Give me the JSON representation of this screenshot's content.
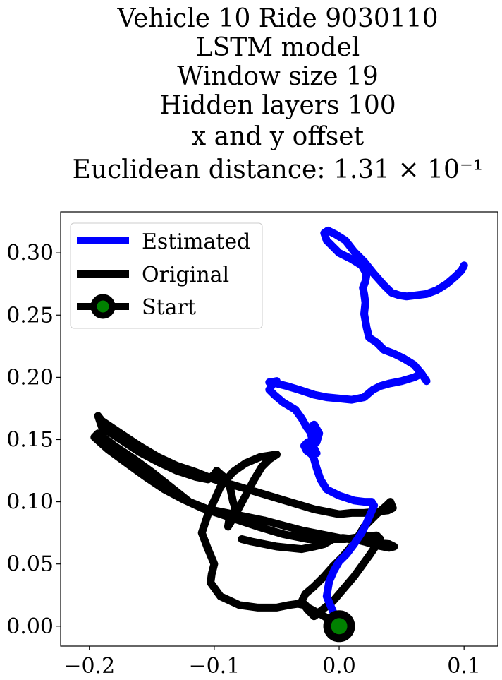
{
  "chart_data": {
    "type": "line",
    "title_lines": [
      "Vehicle 10 Ride 9030110",
      "LSTM model",
      "Window size 19",
      "Hidden layers 100",
      "x and y offset",
      "Euclidean distance: 1.31 × 10⁻¹"
    ],
    "xlabel": "",
    "ylabel": "",
    "xlim": [
      -0.223,
      0.127
    ],
    "ylim": [
      -0.016,
      0.333
    ],
    "x_ticks": [
      -0.2,
      -0.1,
      0.0,
      0.1
    ],
    "x_tick_labels": [
      "−0.2",
      "−0.1",
      "0.0",
      "0.1"
    ],
    "y_ticks": [
      0.0,
      0.05,
      0.1,
      0.15,
      0.2,
      0.25,
      0.3
    ],
    "y_tick_labels": [
      "0.00",
      "0.05",
      "0.10",
      "0.15",
      "0.20",
      "0.25",
      "0.30"
    ],
    "grid": false,
    "legend_position": "top-left",
    "series": [
      {
        "name": "Estimated",
        "color": "#0000ff",
        "x": [
          0.0,
          -0.005,
          -0.01,
          -0.008,
          -0.004,
          0.0,
          0.006,
          0.012,
          0.018,
          0.022,
          0.025,
          0.028,
          0.026,
          0.02,
          0.012,
          0.0,
          -0.01,
          -0.015,
          -0.018,
          -0.02,
          -0.022,
          -0.026,
          -0.028,
          -0.025,
          -0.02,
          -0.018,
          -0.021,
          -0.022,
          -0.024,
          -0.02,
          -0.016,
          -0.018,
          -0.02,
          -0.026,
          -0.03,
          -0.035,
          -0.045,
          -0.052,
          -0.056,
          -0.053,
          -0.05,
          -0.055,
          -0.056,
          -0.05,
          -0.042,
          -0.032,
          -0.02,
          -0.01,
          0.0,
          0.01,
          0.02,
          0.027,
          0.033,
          0.04,
          0.05,
          0.06,
          0.066,
          0.07,
          0.066,
          0.06,
          0.052,
          0.044,
          0.036,
          0.03,
          0.024,
          0.022,
          0.02,
          0.021,
          0.02,
          0.019,
          0.021,
          0.022,
          0.018,
          0.01,
          0.0,
          -0.006,
          -0.01,
          -0.012,
          -0.009,
          -0.003,
          0.005,
          0.012,
          0.02,
          0.028,
          0.036,
          0.042,
          0.048,
          0.054,
          0.062,
          0.07,
          0.078,
          0.086,
          0.093,
          0.098,
          0.1
        ],
        "y": [
          0.0,
          0.012,
          0.024,
          0.036,
          0.045,
          0.052,
          0.058,
          0.066,
          0.075,
          0.083,
          0.09,
          0.097,
          0.1,
          0.1,
          0.101,
          0.105,
          0.11,
          0.118,
          0.127,
          0.134,
          0.138,
          0.141,
          0.145,
          0.148,
          0.143,
          0.139,
          0.144,
          0.152,
          0.159,
          0.162,
          0.155,
          0.148,
          0.152,
          0.16,
          0.167,
          0.174,
          0.18,
          0.186,
          0.19,
          0.195,
          0.197,
          0.196,
          0.196,
          0.195,
          0.193,
          0.19,
          0.186,
          0.184,
          0.183,
          0.182,
          0.184,
          0.19,
          0.193,
          0.195,
          0.197,
          0.2,
          0.203,
          0.197,
          0.203,
          0.21,
          0.215,
          0.219,
          0.222,
          0.228,
          0.232,
          0.24,
          0.251,
          0.26,
          0.267,
          0.272,
          0.277,
          0.283,
          0.29,
          0.295,
          0.3,
          0.306,
          0.31,
          0.316,
          0.318,
          0.315,
          0.31,
          0.301,
          0.293,
          0.283,
          0.274,
          0.268,
          0.266,
          0.265,
          0.266,
          0.267,
          0.27,
          0.275,
          0.281,
          0.286,
          0.29
        ]
      },
      {
        "name": "Original",
        "color": "#000000",
        "x": [
          0.0,
          -0.012,
          -0.025,
          -0.03,
          -0.027,
          -0.02,
          -0.012,
          -0.005,
          0.002,
          0.008,
          0.014,
          0.02,
          0.03,
          0.038,
          0.041,
          0.043,
          0.039,
          0.03,
          0.02,
          0.01,
          0.0,
          -0.02,
          -0.04,
          -0.06,
          -0.08,
          -0.1,
          -0.115,
          -0.13,
          -0.145,
          -0.16,
          -0.175,
          -0.19,
          -0.193,
          -0.19,
          -0.175,
          -0.16,
          -0.145,
          -0.13,
          -0.115,
          -0.105,
          -0.1,
          -0.098,
          -0.097,
          -0.09,
          -0.087,
          -0.085,
          -0.083,
          -0.085,
          -0.088,
          -0.089,
          -0.084,
          -0.076,
          -0.068,
          -0.062,
          -0.056,
          -0.05,
          -0.063,
          -0.075,
          -0.085,
          -0.095,
          -0.105,
          -0.11,
          -0.105,
          -0.1,
          -0.102,
          -0.103,
          -0.095,
          -0.08,
          -0.065,
          -0.05,
          -0.04,
          -0.033,
          -0.028,
          -0.025,
          -0.02,
          -0.005,
          0.012,
          0.025,
          0.033,
          0.03,
          0.018,
          0.005,
          -0.01,
          -0.025,
          -0.045,
          -0.065,
          -0.08,
          -0.095,
          -0.11,
          -0.125,
          -0.14,
          -0.155,
          -0.17,
          -0.185,
          -0.196,
          -0.193,
          -0.18,
          -0.165,
          -0.15,
          -0.135,
          -0.12,
          -0.105,
          -0.09,
          -0.075,
          -0.06,
          -0.045,
          -0.03,
          -0.015,
          0.0,
          0.015,
          0.03,
          0.04,
          0.044,
          0.04,
          0.03,
          0.02,
          0.012,
          0.003,
          -0.005,
          -0.012,
          -0.02,
          -0.03,
          -0.04,
          -0.05,
          -0.06,
          -0.07,
          -0.078
        ],
        "y": [
          0.0,
          0.008,
          0.015,
          0.02,
          0.026,
          0.032,
          0.04,
          0.048,
          0.055,
          0.062,
          0.07,
          0.08,
          0.09,
          0.097,
          0.1,
          0.095,
          0.093,
          0.092,
          0.091,
          0.091,
          0.09,
          0.094,
          0.1,
          0.106,
          0.112,
          0.118,
          0.124,
          0.129,
          0.136,
          0.145,
          0.155,
          0.165,
          0.169,
          0.16,
          0.15,
          0.14,
          0.132,
          0.125,
          0.12,
          0.118,
          0.122,
          0.125,
          0.124,
          0.118,
          0.11,
          0.1,
          0.095,
          0.09,
          0.086,
          0.08,
          0.088,
          0.103,
          0.118,
          0.128,
          0.134,
          0.138,
          0.136,
          0.131,
          0.124,
          0.112,
          0.09,
          0.075,
          0.062,
          0.05,
          0.042,
          0.035,
          0.024,
          0.017,
          0.015,
          0.015,
          0.017,
          0.018,
          0.017,
          0.013,
          0.008,
          0.02,
          0.04,
          0.058,
          0.07,
          0.073,
          0.072,
          0.07,
          0.07,
          0.07,
          0.074,
          0.08,
          0.085,
          0.09,
          0.095,
          0.102,
          0.11,
          0.12,
          0.131,
          0.142,
          0.152,
          0.155,
          0.145,
          0.135,
          0.124,
          0.112,
          0.1,
          0.094,
          0.091,
          0.088,
          0.085,
          0.081,
          0.077,
          0.074,
          0.071,
          0.069,
          0.067,
          0.066,
          0.064,
          0.063,
          0.065,
          0.068,
          0.07,
          0.071,
          0.07,
          0.066,
          0.064,
          0.062,
          0.063,
          0.064,
          0.066,
          0.068,
          0.07
        ]
      }
    ],
    "start_point": {
      "name": "Start",
      "x": 0.0,
      "y": 0.0,
      "edge_color": "#000000",
      "face_color": "#008000"
    }
  }
}
